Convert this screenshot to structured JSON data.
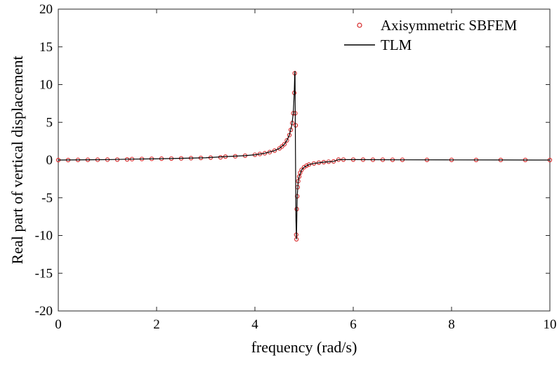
{
  "chart_data": {
    "type": "line",
    "xlabel": "frequency (rad/s)",
    "ylabel": "Real part of vertical displacement",
    "xlim": [
      0,
      10
    ],
    "ylim": [
      -20,
      20
    ],
    "xticks": [
      0,
      2,
      4,
      6,
      8,
      10
    ],
    "yticks": [
      -20,
      -15,
      -10,
      -5,
      0,
      5,
      10,
      15,
      20
    ],
    "grid": false,
    "legend_position": "top-right",
    "series": [
      {
        "name": "Axisymmetric SBFEM",
        "style": "markers",
        "marker": "circle",
        "color": "#d62728",
        "x": [
          0.0,
          0.2,
          0.4,
          0.6,
          0.8,
          1.0,
          1.2,
          1.4,
          1.5,
          1.7,
          1.9,
          2.1,
          2.3,
          2.5,
          2.7,
          2.9,
          3.1,
          3.3,
          3.4,
          3.6,
          3.8,
          4.0,
          4.1,
          4.2,
          4.3,
          4.4,
          4.5,
          4.55,
          4.6,
          4.65,
          4.7,
          4.73,
          4.76,
          4.78,
          4.8,
          4.81,
          4.82,
          4.83,
          4.84,
          4.845,
          4.85,
          4.86,
          4.87,
          4.88,
          4.9,
          4.92,
          4.95,
          5.0,
          5.05,
          5.1,
          5.2,
          5.3,
          5.4,
          5.5,
          5.6,
          5.7,
          5.8,
          6.0,
          6.2,
          6.4,
          6.6,
          6.8,
          7.0,
          7.5,
          8.0,
          8.5,
          9.0,
          9.5,
          10.0
        ],
        "y": [
          0.0,
          0.0,
          0.02,
          0.03,
          0.04,
          0.05,
          0.06,
          0.08,
          0.12,
          0.14,
          0.16,
          0.18,
          0.2,
          0.22,
          0.25,
          0.28,
          0.32,
          0.36,
          0.45,
          0.5,
          0.58,
          0.7,
          0.8,
          0.9,
          1.05,
          1.25,
          1.55,
          1.8,
          2.1,
          2.6,
          3.3,
          4.0,
          4.9,
          6.2,
          8.9,
          11.5,
          6.2,
          4.6,
          -9.9,
          -10.5,
          -6.5,
          -4.8,
          -3.6,
          -2.8,
          -2.2,
          -1.7,
          -1.3,
          -0.95,
          -0.75,
          -0.6,
          -0.45,
          -0.35,
          -0.28,
          -0.22,
          -0.18,
          0.05,
          0.06,
          0.06,
          0.05,
          0.04,
          0.04,
          0.03,
          0.03,
          0.02,
          0.02,
          0.01,
          0.01,
          0.01,
          0.0
        ]
      },
      {
        "name": "TLM",
        "style": "line",
        "color": "#000000",
        "x": [
          0.0,
          1.0,
          1.5,
          2.0,
          3.0,
          3.4,
          3.8,
          4.0,
          4.2,
          4.4,
          4.5,
          4.6,
          4.65,
          4.7,
          4.75,
          4.78,
          4.8,
          4.81,
          4.815,
          4.825,
          4.835,
          4.845,
          4.86,
          4.88,
          4.9,
          4.95,
          5.0,
          5.1,
          5.2,
          5.4,
          5.6,
          5.7,
          6.0,
          7.0,
          8.0,
          9.0,
          10.0
        ],
        "y": [
          0.0,
          0.05,
          0.12,
          0.16,
          0.3,
          0.45,
          0.58,
          0.7,
          0.9,
          1.25,
          1.55,
          2.1,
          2.6,
          3.3,
          4.6,
          6.2,
          8.9,
          11.5,
          11.8,
          1.0,
          -8.0,
          -10.5,
          -4.8,
          -2.8,
          -2.2,
          -1.3,
          -0.95,
          -0.6,
          -0.45,
          -0.28,
          -0.18,
          0.05,
          0.06,
          0.03,
          0.02,
          0.01,
          0.0
        ]
      }
    ]
  }
}
